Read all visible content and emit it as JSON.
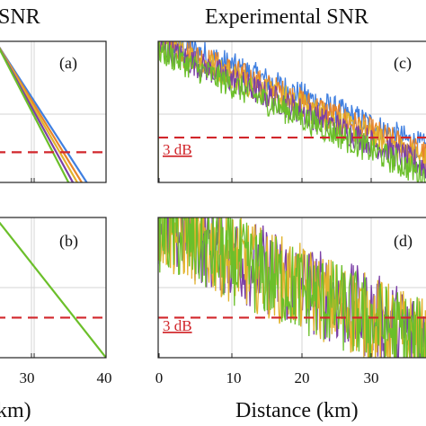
{
  "titles": {
    "left_partial": "SNR",
    "right": "Experimental SNR"
  },
  "xlabels": {
    "left_partial": "km)",
    "right": "Distance (km)"
  },
  "panel_labels": [
    "(a)",
    "(b)",
    "(c)",
    "(d)"
  ],
  "threshold_label": "3 dB",
  "colors": {
    "threshold": "#d1262b",
    "series": [
      "#3f7fe0",
      "#e8852a",
      "#e2b32c",
      "#7b3fa6",
      "#6bbf2a"
    ]
  },
  "chart_data": [
    {
      "panel": "(a)",
      "type": "line",
      "xlim": [
        20,
        40
      ],
      "x_ticks": [],
      "series": [
        {
          "color": "#3f7fe0",
          "x": [
            20,
            36.5
          ],
          "y": [
            14,
            0
          ]
        },
        {
          "color": "#e8852a",
          "x": [
            20,
            35.6
          ],
          "y": [
            14,
            0
          ]
        },
        {
          "color": "#e2b32c",
          "x": [
            20,
            34.8
          ],
          "y": [
            14,
            0
          ]
        },
        {
          "color": "#7b3fa6",
          "x": [
            20,
            34.0
          ],
          "y": [
            14,
            0
          ]
        },
        {
          "color": "#6bbf2a",
          "x": [
            20,
            33.2
          ],
          "y": [
            14,
            0
          ]
        }
      ],
      "threshold_db": 3,
      "grid": true
    },
    {
      "panel": "(b)",
      "type": "line",
      "xlim": [
        20,
        40
      ],
      "x_ticks": [
        "30",
        "40"
      ],
      "series": [
        {
          "color": "#6bbf2a",
          "x": [
            20,
            40
          ],
          "y": [
            10.5,
            0
          ]
        }
      ],
      "threshold_db": 3,
      "grid": true
    },
    {
      "panel": "(c)",
      "type": "line",
      "xlim": [
        0,
        40
      ],
      "x_ticks": [],
      "series": [
        {
          "color": "#3f7fe0",
          "slope": -0.45,
          "intercept": 19
        },
        {
          "color": "#e8852a",
          "slope": -0.46,
          "intercept": 18.3
        },
        {
          "color": "#e2b32c",
          "slope": -0.47,
          "intercept": 17.8
        },
        {
          "color": "#7b3fa6",
          "slope": -0.48,
          "intercept": 17.2
        },
        {
          "color": "#6bbf2a",
          "slope": -0.5,
          "intercept": 16.6
        }
      ],
      "threshold_db": 3,
      "grid": true
    },
    {
      "panel": "(d)",
      "type": "line",
      "xlim": [
        0,
        40
      ],
      "x_ticks": [
        "0",
        "10",
        "20",
        "30"
      ],
      "series": [
        {
          "color": "#7b3fa6",
          "slope": -0.3,
          "intercept": 12.5
        },
        {
          "color": "#e2b32c",
          "slope": -0.3,
          "intercept": 12.2
        },
        {
          "color": "#6bbf2a",
          "slope": -0.3,
          "intercept": 12.0
        }
      ],
      "threshold_db": 3,
      "grid": true
    }
  ]
}
